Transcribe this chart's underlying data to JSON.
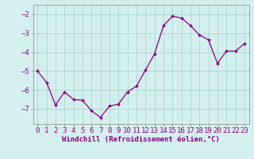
{
  "x": [
    0,
    1,
    2,
    3,
    4,
    5,
    6,
    7,
    8,
    9,
    10,
    11,
    12,
    13,
    14,
    15,
    16,
    17,
    18,
    19,
    20,
    21,
    22,
    23
  ],
  "y": [
    -5.0,
    -5.6,
    -6.8,
    -6.1,
    -6.5,
    -6.55,
    -7.1,
    -7.45,
    -6.85,
    -6.75,
    -6.1,
    -5.8,
    -4.95,
    -4.1,
    -2.6,
    -2.1,
    -2.2,
    -2.6,
    -3.1,
    -3.35,
    -4.6,
    -3.95,
    -3.95,
    -3.55
  ],
  "line_color": "#880088",
  "marker": "D",
  "marker_size": 2.0,
  "line_width": 0.9,
  "bg_color": "#d4f0ee",
  "grid_color": "#b0d8d8",
  "xlabel": "Windchill (Refroidissement éolien,°C)",
  "xlabel_fontsize": 6.5,
  "label_color": "#880088",
  "xtick_labels": [
    "0",
    "1",
    "2",
    "3",
    "4",
    "5",
    "6",
    "7",
    "8",
    "9",
    "10",
    "11",
    "12",
    "13",
    "14",
    "15",
    "16",
    "17",
    "18",
    "19",
    "20",
    "21",
    "22",
    "23"
  ],
  "yticks": [
    -7,
    -6,
    -5,
    -4,
    -3,
    -2
  ],
  "ylim": [
    -7.8,
    -1.5
  ],
  "xlim": [
    -0.5,
    23.5
  ],
  "tick_fontsize": 6.5,
  "border_color": "#888888"
}
